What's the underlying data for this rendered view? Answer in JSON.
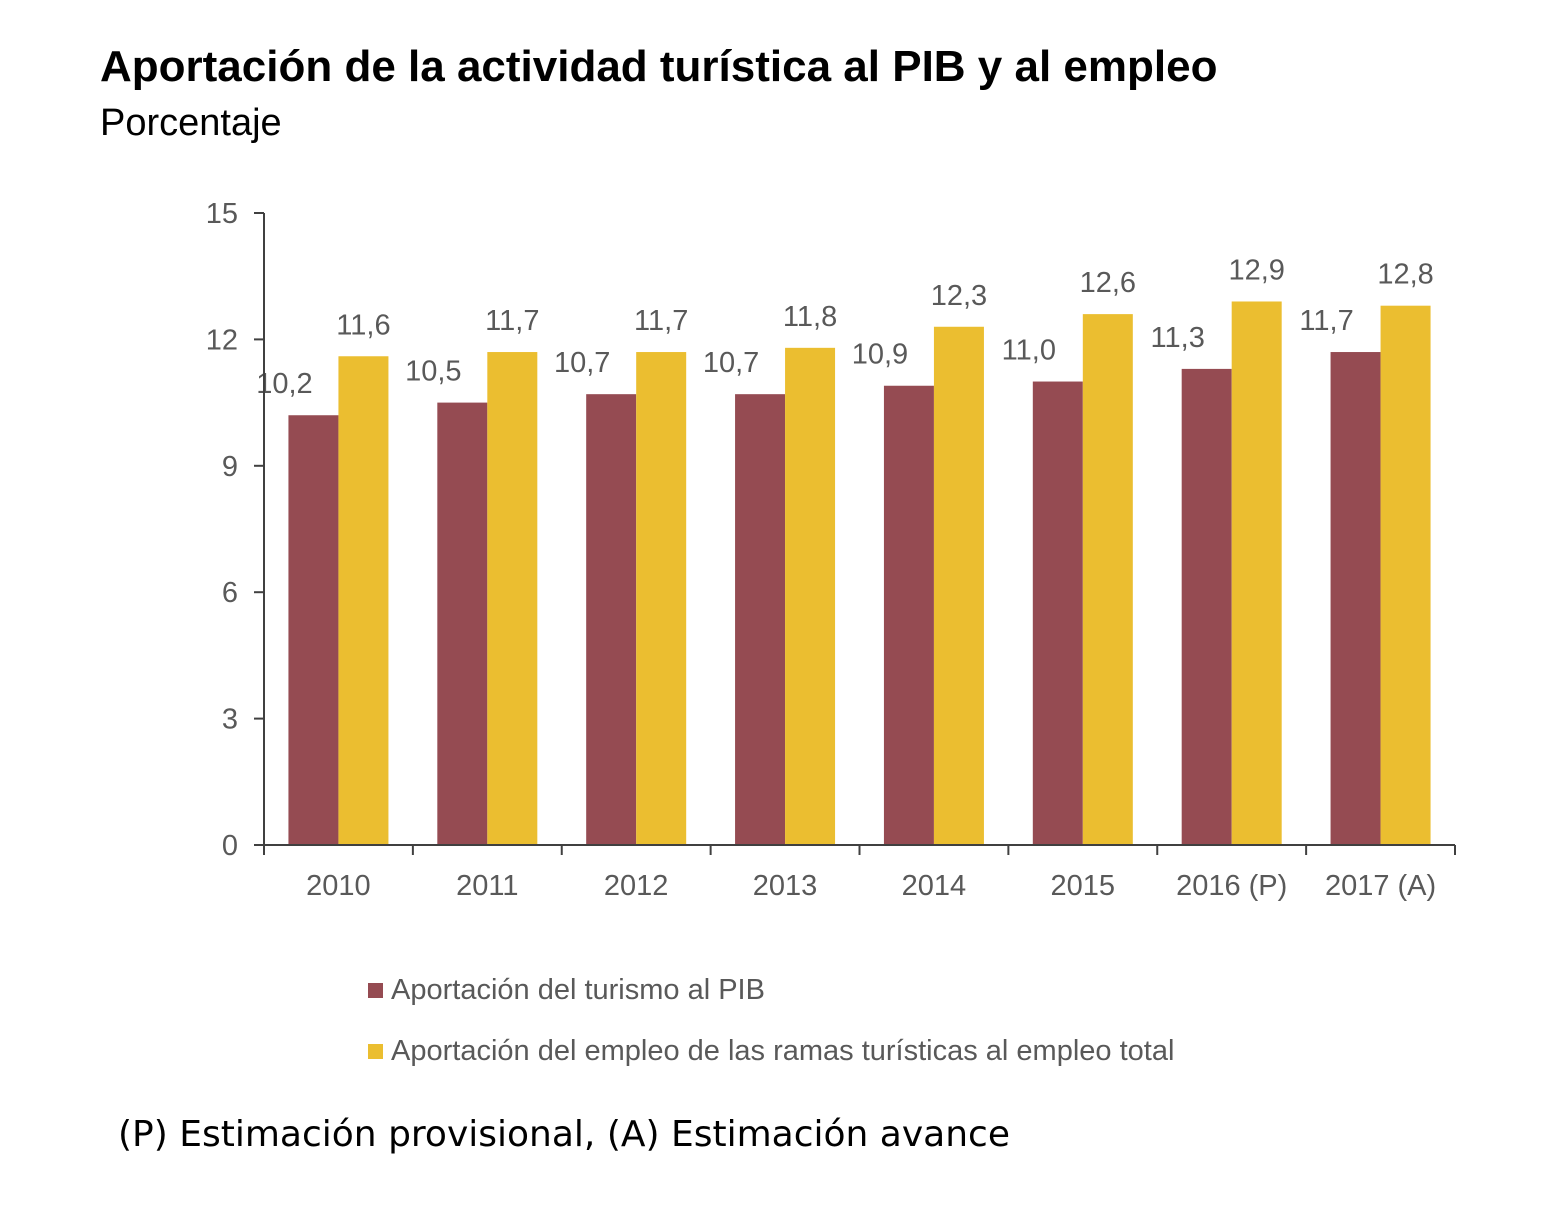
{
  "chart_data": {
    "type": "bar",
    "title": "Aportación de la actividad turística al PIB y al empleo",
    "subtitle": "Porcentaje",
    "categories": [
      "2010",
      "2011",
      "2012",
      "2013",
      "2014",
      "2015",
      "2016 (P)",
      "2017 (A)"
    ],
    "series": [
      {
        "name": "Aportación del turismo al PIB",
        "color": "#954B52",
        "values": [
          10.2,
          10.5,
          10.7,
          10.7,
          10.9,
          11.0,
          11.3,
          11.7
        ],
        "labels": [
          "10,2",
          "10,5",
          "10,7",
          "10,7",
          "10,9",
          "11,0",
          "11,3",
          "11,7"
        ]
      },
      {
        "name": "Aportación del empleo de las ramas turísticas al empleo total",
        "color": "#EBBE30",
        "values": [
          11.6,
          11.7,
          11.7,
          11.8,
          12.3,
          12.6,
          12.9,
          12.8
        ],
        "labels": [
          "11,6",
          "11,7",
          "11,7",
          "11,8",
          "12,3",
          "12,6",
          "12,9",
          "12,8"
        ]
      }
    ],
    "ylim": [
      0,
      15
    ],
    "yticks": [
      0,
      3,
      6,
      9,
      12,
      15
    ],
    "xlabel": "",
    "ylabel": "",
    "grid": false,
    "legend_position": "bottom"
  },
  "footnote": "(P) Estimación provisional, (A) Estimación avance"
}
